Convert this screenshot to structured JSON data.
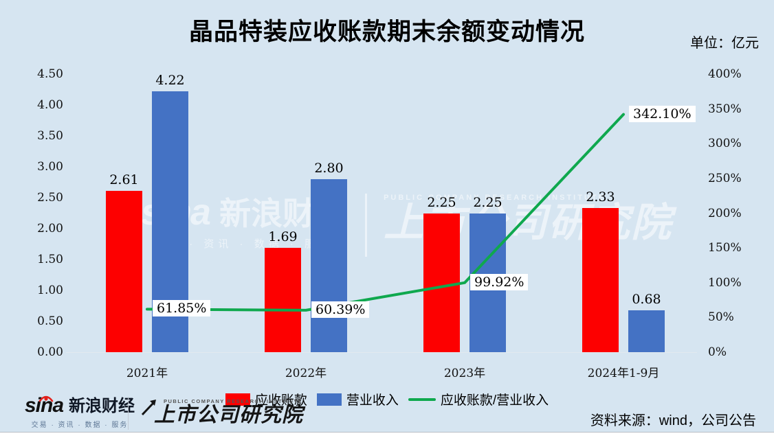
{
  "title": "晶品特装应收账款期末余额变动情况",
  "unit_label": "单位：亿元",
  "source_label": "资料来源：wind，公司公告",
  "colors": {
    "background": "#d6e5f1",
    "receivables_red": "#fd0000",
    "revenue_blue": "#4472c4",
    "ratio_green": "#0fa84e"
  },
  "watermark": {
    "sina_word": "sina",
    "sina_name": "新浪财经",
    "tagline": "交易 · 资讯 · 数据 · 服务",
    "institute_en": "PUBLIC COMPANY RESEARCH INSTITUTE",
    "institute": "上市公司研究院"
  },
  "footer": {
    "sina_word": "sina",
    "sina_name": "新浪财经",
    "sina_tagline": "交易 · 资讯 · 数据 · 服务",
    "institute_en": "PUBLIC COMPANY RESEARCH INSTITUTE",
    "institute": "上市公司研究院"
  },
  "legend": [
    {
      "label": "应收账款",
      "type": "bar",
      "color": "#fd0000"
    },
    {
      "label": "营业收入",
      "type": "bar",
      "color": "#4472c4"
    },
    {
      "label": "应收账款/营业收入",
      "type": "line",
      "color": "#0fa84e"
    }
  ],
  "chart_data": {
    "type": "bar+line combo",
    "title": "晶品特装应收账款期末余额变动情况",
    "unit": "亿元",
    "categories": [
      "2021年",
      "2022年",
      "2023年",
      "2024年1-9月"
    ],
    "series": [
      {
        "name": "应收账款",
        "type": "bar",
        "axis": "left",
        "color": "#fd0000",
        "values": [
          2.61,
          1.69,
          2.25,
          2.33
        ],
        "labels": [
          "2.61",
          "1.69",
          "2.25",
          "2.33"
        ]
      },
      {
        "name": "营业收入",
        "type": "bar",
        "axis": "left",
        "color": "#4472c4",
        "values": [
          4.22,
          2.8,
          2.25,
          0.68
        ],
        "labels": [
          "4.22",
          "2.80",
          "2.25",
          "0.68"
        ]
      },
      {
        "name": "应收账款/营业收入",
        "type": "line",
        "axis": "right",
        "color": "#0fa84e",
        "values": [
          61.85,
          60.39,
          99.92,
          342.1
        ],
        "labels": [
          "61.85%",
          "60.39%",
          "99.92%",
          "342.10%"
        ]
      }
    ],
    "left_axis": {
      "min": 0,
      "max": 4.5,
      "step": 0.5,
      "ticks": [
        "4.50",
        "4.00",
        "3.50",
        "3.00",
        "2.50",
        "2.00",
        "1.50",
        "1.00",
        "0.50",
        "0.00"
      ]
    },
    "right_axis": {
      "min": 0,
      "max": 400,
      "step": 50,
      "ticks": [
        "400%",
        "350%",
        "300%",
        "250%",
        "200%",
        "150%",
        "100%",
        "50%",
        "0%"
      ]
    },
    "grid": false,
    "legend_position": "bottom"
  }
}
